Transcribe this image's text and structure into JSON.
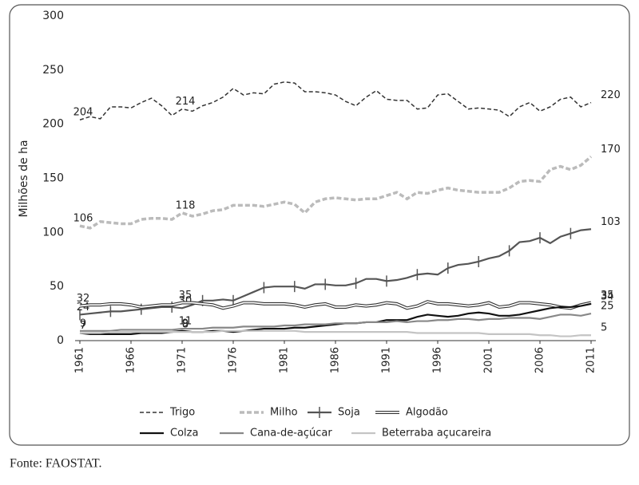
{
  "chart_data": {
    "type": "line",
    "y_label": "Milhões de ha",
    "x": [
      1961,
      1962,
      1963,
      1964,
      1965,
      1966,
      1967,
      1968,
      1969,
      1970,
      1971,
      1972,
      1973,
      1974,
      1975,
      1976,
      1977,
      1978,
      1979,
      1980,
      1981,
      1982,
      1983,
      1984,
      1985,
      1986,
      1987,
      1988,
      1989,
      1990,
      1991,
      1992,
      1993,
      1994,
      1995,
      1996,
      1997,
      1998,
      1999,
      2000,
      2001,
      2002,
      2003,
      2004,
      2005,
      2006,
      2007,
      2008,
      2009,
      2010,
      2011
    ],
    "xlim": [
      1961,
      2011
    ],
    "xticks": [
      1961,
      1966,
      1971,
      1976,
      1981,
      1986,
      1991,
      1996,
      2001,
      2006,
      2011
    ],
    "ylim": [
      0,
      300
    ],
    "yticks": [
      0,
      50,
      100,
      150,
      200,
      250,
      300
    ],
    "grid": false,
    "series": [
      {
        "name": "Trigo",
        "color": "#333333",
        "style": "dashed",
        "values": [
          204,
          207,
          205,
          216,
          216,
          215,
          220,
          224,
          217,
          208,
          214,
          212,
          217,
          220,
          225,
          233,
          227,
          229,
          228,
          237,
          239,
          238,
          230,
          230,
          229,
          227,
          221,
          217,
          225,
          231,
          223,
          222,
          222,
          214,
          215,
          227,
          228,
          221,
          214,
          215,
          214,
          213,
          207,
          216,
          220,
          212,
          216,
          223,
          225,
          216,
          220
        ],
        "value_labels": [
          "204",
          null,
          null,
          null,
          null,
          null,
          null,
          null,
          null,
          null,
          "214",
          null,
          null,
          null,
          null,
          null,
          null,
          null,
          null,
          null,
          null,
          null,
          null,
          null,
          null,
          null,
          null,
          null,
          null,
          null,
          null,
          null,
          null,
          null,
          null,
          null,
          null,
          null,
          null,
          null,
          null,
          null,
          null,
          null,
          null,
          null,
          null,
          null,
          null,
          null,
          "220"
        ]
      },
      {
        "name": "Milho",
        "color": "#bbbbbb",
        "style": "dotted",
        "values": [
          106,
          104,
          110,
          109,
          108,
          108,
          112,
          113,
          113,
          112,
          118,
          115,
          117,
          120,
          121,
          125,
          125,
          125,
          124,
          126,
          128,
          126,
          118,
          128,
          131,
          132,
          131,
          130,
          131,
          131,
          134,
          137,
          131,
          137,
          136,
          139,
          141,
          139,
          138,
          137,
          137,
          137,
          141,
          147,
          148,
          147,
          158,
          161,
          158,
          162,
          170
        ],
        "value_labels": [
          "106",
          null,
          null,
          null,
          null,
          null,
          null,
          null,
          null,
          null,
          "118",
          null,
          null,
          null,
          null,
          null,
          null,
          null,
          null,
          null,
          null,
          null,
          null,
          null,
          null,
          null,
          null,
          null,
          null,
          null,
          null,
          null,
          null,
          null,
          null,
          null,
          null,
          null,
          null,
          null,
          null,
          null,
          null,
          null,
          null,
          null,
          null,
          null,
          null,
          null,
          "170"
        ]
      },
      {
        "name": "Soja",
        "color": "#555555",
        "style": "ticks",
        "values": [
          24,
          25,
          26,
          27,
          27,
          28,
          29,
          30,
          31,
          31,
          30,
          33,
          37,
          37,
          38,
          37,
          41,
          45,
          49,
          50,
          50,
          50,
          48,
          52,
          52,
          51,
          51,
          53,
          57,
          57,
          55,
          56,
          58,
          61,
          62,
          61,
          67,
          70,
          71,
          73,
          76,
          78,
          83,
          91,
          92,
          95,
          90,
          96,
          99,
          102,
          103
        ],
        "value_labels": [
          "24",
          null,
          null,
          null,
          null,
          null,
          null,
          null,
          null,
          null,
          "30",
          null,
          null,
          null,
          null,
          null,
          null,
          null,
          null,
          null,
          null,
          null,
          null,
          null,
          null,
          null,
          null,
          null,
          null,
          null,
          null,
          null,
          null,
          null,
          null,
          null,
          null,
          null,
          null,
          null,
          null,
          null,
          null,
          null,
          null,
          null,
          null,
          null,
          null,
          null,
          "103"
        ]
      },
      {
        "name": "Algodão",
        "color": "#333333",
        "style": "double",
        "values": [
          32,
          33,
          33,
          34,
          34,
          33,
          31,
          32,
          33,
          33,
          35,
          35,
          34,
          33,
          30,
          32,
          35,
          35,
          34,
          34,
          34,
          33,
          31,
          33,
          34,
          31,
          31,
          33,
          32,
          33,
          35,
          34,
          30,
          32,
          36,
          34,
          34,
          33,
          32,
          33,
          35,
          31,
          32,
          35,
          35,
          34,
          33,
          31,
          30,
          33,
          35
        ],
        "value_labels": [
          "32",
          null,
          null,
          null,
          null,
          null,
          null,
          null,
          null,
          null,
          "35",
          null,
          null,
          null,
          null,
          null,
          null,
          null,
          null,
          null,
          null,
          null,
          null,
          null,
          null,
          null,
          null,
          null,
          null,
          null,
          null,
          null,
          null,
          null,
          null,
          null,
          null,
          null,
          null,
          null,
          null,
          null,
          null,
          null,
          null,
          null,
          null,
          null,
          null,
          null,
          "35"
        ]
      },
      {
        "name": "Colza",
        "color": "#111111",
        "style": "solid",
        "values": [
          7,
          6,
          6,
          6,
          6,
          6,
          7,
          7,
          7,
          8,
          9,
          8,
          8,
          9,
          9,
          8,
          9,
          10,
          11,
          11,
          11,
          12,
          12,
          13,
          14,
          15,
          16,
          16,
          17,
          17,
          19,
          19,
          19,
          22,
          24,
          23,
          22,
          23,
          25,
          26,
          25,
          23,
          23,
          24,
          26,
          28,
          30,
          31,
          31,
          32,
          34
        ],
        "value_labels": [
          "7",
          null,
          null,
          null,
          null,
          null,
          null,
          null,
          null,
          null,
          "9",
          null,
          null,
          null,
          null,
          null,
          null,
          null,
          null,
          null,
          null,
          null,
          null,
          null,
          null,
          null,
          null,
          null,
          null,
          null,
          null,
          null,
          null,
          null,
          null,
          null,
          null,
          null,
          null,
          null,
          null,
          null,
          null,
          null,
          null,
          null,
          null,
          null,
          null,
          null,
          "34"
        ]
      },
      {
        "name": "Cana-de-açúcar",
        "color": "#888888",
        "style": "solid",
        "values": [
          9,
          9,
          9,
          9,
          10,
          10,
          10,
          10,
          10,
          10,
          11,
          11,
          11,
          12,
          12,
          12,
          13,
          13,
          13,
          13,
          14,
          14,
          15,
          15,
          15,
          16,
          16,
          16,
          17,
          17,
          17,
          18,
          17,
          18,
          18,
          19,
          19,
          20,
          20,
          19,
          20,
          20,
          21,
          21,
          21,
          20,
          22,
          24,
          24,
          23,
          25
        ],
        "value_labels": [
          "9",
          null,
          null,
          null,
          null,
          null,
          null,
          null,
          null,
          null,
          "11",
          null,
          null,
          null,
          null,
          null,
          null,
          null,
          null,
          null,
          null,
          null,
          null,
          null,
          null,
          null,
          null,
          null,
          null,
          null,
          null,
          null,
          null,
          null,
          null,
          null,
          null,
          null,
          null,
          null,
          null,
          null,
          null,
          null,
          null,
          null,
          null,
          null,
          null,
          null,
          "25"
        ]
      },
      {
        "name": "Beterraba açucareira",
        "color": "#c4c4c4",
        "style": "solid",
        "values": [
          7,
          7,
          7,
          8,
          8,
          8,
          8,
          8,
          8,
          8,
          8,
          8,
          8,
          8,
          9,
          9,
          9,
          9,
          9,
          9,
          9,
          9,
          8,
          8,
          8,
          8,
          8,
          8,
          8,
          8,
          8,
          8,
          8,
          7,
          7,
          7,
          7,
          7,
          7,
          7,
          6,
          6,
          6,
          6,
          6,
          5,
          5,
          4,
          4,
          5,
          5
        ],
        "value_labels": [
          null,
          null,
          null,
          null,
          null,
          null,
          null,
          null,
          null,
          null,
          "8",
          null,
          null,
          null,
          null,
          null,
          null,
          null,
          null,
          null,
          null,
          null,
          null,
          null,
          null,
          null,
          null,
          null,
          null,
          null,
          null,
          null,
          null,
          null,
          null,
          null,
          null,
          null,
          null,
          null,
          null,
          null,
          null,
          null,
          null,
          null,
          null,
          null,
          null,
          null,
          "5"
        ]
      }
    ]
  },
  "source": "Fonte: FAOSTAT."
}
